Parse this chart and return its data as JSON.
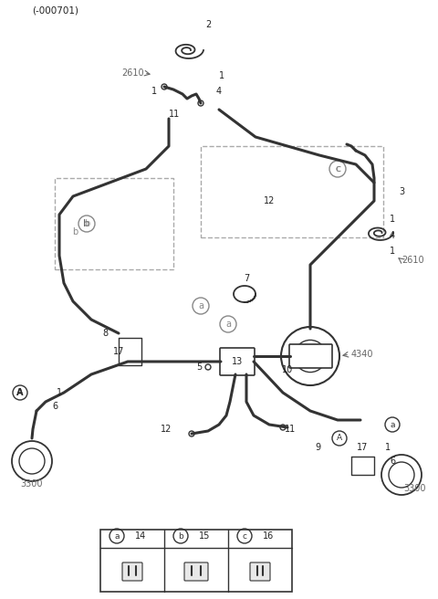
{
  "title": "(-000701)",
  "bg_color": "#ffffff",
  "line_color": "#333333",
  "label_color": "#555555",
  "figsize": [
    4.8,
    6.56
  ],
  "dpi": 100,
  "labels": {
    "top_left_code": "(-000701)",
    "part2": "2",
    "part2610_left": "2610",
    "part1_top_left": "1",
    "part1_top_right": "1",
    "part4_top": "4",
    "part11_top": "11",
    "partc": "c",
    "part12_top": "12",
    "part3": "3",
    "part1_right_top": "1",
    "part4_right": "4",
    "part1_right_bot": "1",
    "part2610_right": "2610",
    "part7": "7",
    "part8": "8",
    "partA_left": "A",
    "part17_left": "17",
    "parta_mid_top": "a",
    "parta_mid_mid": "a",
    "part1_left": "1",
    "part6_left": "6",
    "part3300_left": "3300",
    "part13": "13",
    "part10": "10",
    "part4340": "4340",
    "partA_right": "A",
    "parta_right": "a",
    "part5": "5",
    "part12_bot": "12",
    "part11_bot": "11",
    "part9": "9",
    "part17_right": "17",
    "part1_bot_right": "1",
    "part6_right": "6",
    "part3300_right": "3300",
    "partb": "b",
    "legend_a": "a",
    "legend_14": "14",
    "legend_b": "b",
    "legend_15": "15",
    "legend_c": "c",
    "legend_16": "16"
  }
}
